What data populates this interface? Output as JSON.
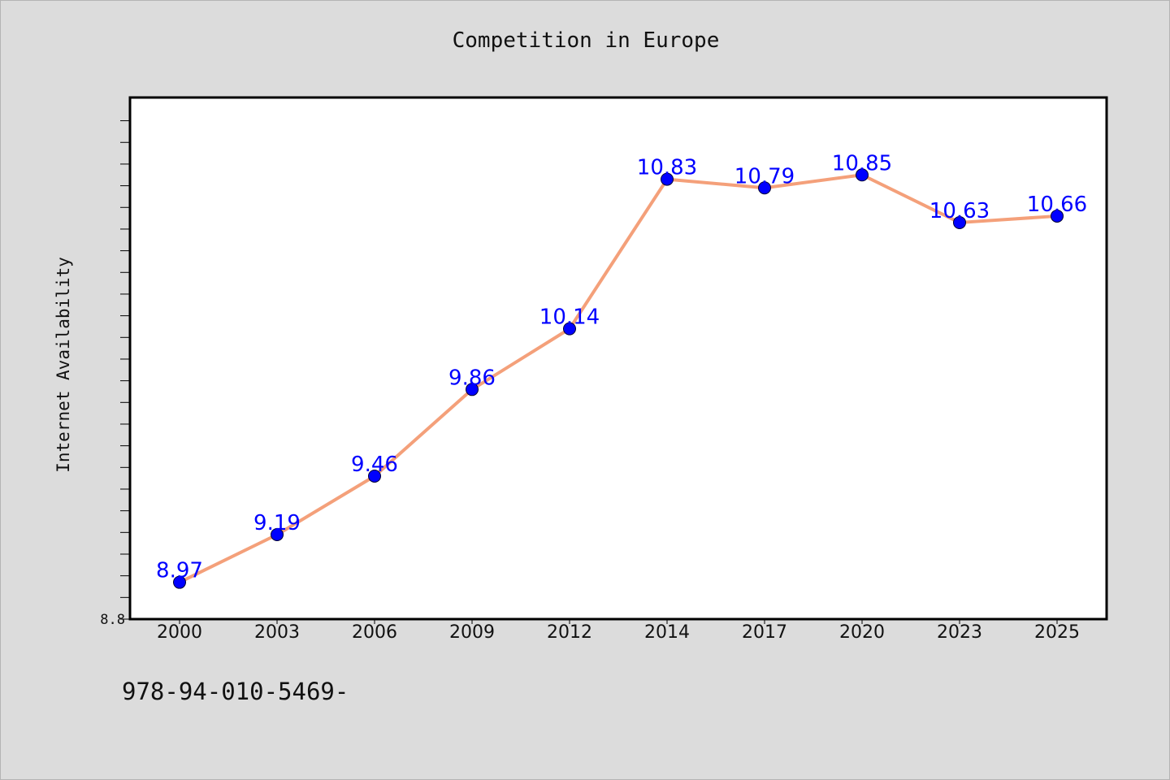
{
  "chart_data": {
    "type": "line",
    "title": "Competition in Europe",
    "xlabel": "",
    "ylabel": "Internet Availability",
    "categories": [
      "2000",
      "2003",
      "2006",
      "2009",
      "2012",
      "2014",
      "2017",
      "2020",
      "2023",
      "2025"
    ],
    "series": [
      {
        "values": [
          8.97,
          9.19,
          9.46,
          9.86,
          10.14,
          10.83,
          10.79,
          10.85,
          10.63,
          10.66
        ],
        "labels": [
          "8.97",
          "9.19",
          "9.46",
          "9.86",
          "10.14",
          "10.83",
          "10.79",
          "10.85",
          "10.63",
          "10.66"
        ],
        "line_color": "#f4a07a",
        "marker_color": "#0000ff"
      }
    ],
    "ylim": [
      8.8,
      11.2
    ],
    "yticks_labeled": [
      "8.8"
    ],
    "grid": false,
    "legend": "none"
  },
  "footer": {
    "text": "978-94-010-5469-"
  },
  "colors": {
    "background": "#dcdcdc",
    "plot_background": "#ffffff",
    "line": "#f4a07a",
    "marker": "#0000ff",
    "data_label": "#0000ff"
  }
}
